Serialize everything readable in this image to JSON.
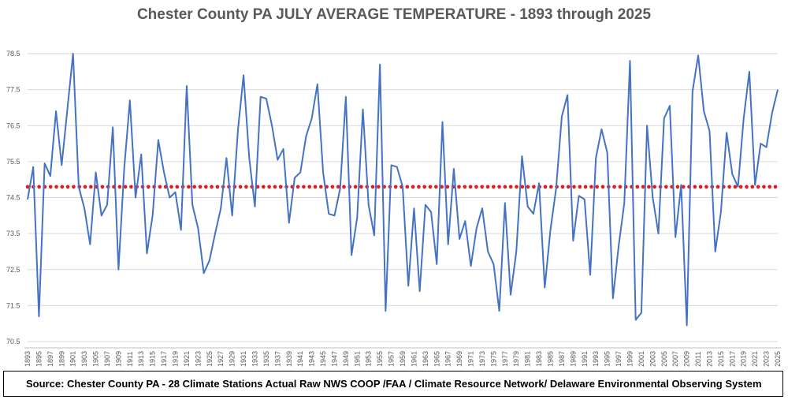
{
  "chart_data": {
    "type": "line",
    "title": "Chester County PA JULY AVERAGE TEMPERATURE - 1893 through 2025",
    "xlabel": "",
    "ylabel": "",
    "ylim": [
      70.5,
      78.5
    ],
    "yticks": [
      "70.5",
      "71.5",
      "72.5",
      "73.5",
      "74.5",
      "75.5",
      "76.5",
      "77.5",
      "78.5"
    ],
    "grid": true,
    "series": [
      {
        "name": "July Average Temperature",
        "color": "#4472c4",
        "x_start": 1893,
        "values": [
          74.45,
          75.35,
          71.2,
          75.45,
          75.1,
          76.9,
          75.4,
          76.95,
          78.5,
          74.8,
          74.2,
          73.2,
          75.2,
          74.0,
          74.3,
          76.45,
          72.5,
          75.3,
          77.2,
          74.5,
          75.7,
          72.95,
          74.0,
          76.1,
          75.2,
          74.5,
          74.65,
          73.6,
          77.6,
          74.3,
          73.65,
          72.4,
          72.75,
          73.5,
          74.2,
          75.6,
          74.0,
          76.35,
          77.9,
          75.6,
          74.25,
          77.3,
          77.25,
          76.5,
          75.55,
          75.85,
          73.8,
          75.05,
          75.2,
          76.2,
          76.7,
          77.65,
          75.2,
          74.05,
          74.0,
          74.75,
          77.3,
          72.9,
          73.95,
          76.95,
          74.3,
          73.45,
          78.2,
          71.35,
          75.4,
          75.35,
          74.8,
          72.05,
          74.2,
          71.9,
          74.3,
          74.1,
          72.65,
          76.6,
          73.2,
          75.3,
          73.35,
          73.85,
          72.6,
          73.65,
          74.2,
          73.0,
          72.65,
          71.35,
          74.35,
          71.8,
          73.0,
          75.65,
          74.25,
          74.05,
          74.9,
          72.0,
          73.6,
          74.75,
          76.75,
          77.35,
          73.3,
          74.55,
          74.45,
          72.35,
          75.6,
          76.4,
          75.75,
          71.7,
          73.15,
          74.35,
          78.3,
          71.1,
          71.3,
          76.5,
          74.5,
          73.5,
          76.7,
          77.05,
          73.4,
          74.85,
          70.95,
          77.45,
          78.45,
          76.9,
          76.35,
          73.0,
          74.1,
          76.3,
          75.15,
          74.8,
          76.7,
          78.0,
          74.85,
          76.0,
          75.9,
          76.85,
          77.5
        ]
      },
      {
        "name": "Average",
        "color": "#e41a1c",
        "style": "dotted",
        "value": 74.8
      }
    ],
    "xtick_labels": [
      "1893",
      "1895",
      "1897",
      "1899",
      "1901",
      "1903",
      "1905",
      "1907",
      "1909",
      "1911",
      "1913",
      "1915",
      "1917",
      "1919",
      "1921",
      "1923",
      "1925",
      "1927",
      "1929",
      "1931",
      "1933",
      "1935",
      "1937",
      "1939",
      "1941",
      "1943",
      "1945",
      "1947",
      "1949",
      "1951",
      "1953",
      "1955",
      "1957",
      "1959",
      "1961",
      "1963",
      "1965",
      "1967",
      "1969",
      "1971",
      "1973",
      "1975",
      "1977",
      "1979",
      "1981",
      "1983",
      "1985",
      "1987",
      "1989",
      "1991",
      "1993",
      "1995",
      "1997",
      "1999",
      "2001",
      "2003",
      "2005",
      "2007",
      "2009",
      "2011",
      "2013",
      "2015",
      "2017",
      "2019",
      "2021",
      "2023",
      "2025"
    ],
    "source": "Source: Chester County PA - 28 Climate Stations Actual Raw NWS COOP /FAA / Climate Resource Network/ Delaware Environmental Observing System"
  }
}
